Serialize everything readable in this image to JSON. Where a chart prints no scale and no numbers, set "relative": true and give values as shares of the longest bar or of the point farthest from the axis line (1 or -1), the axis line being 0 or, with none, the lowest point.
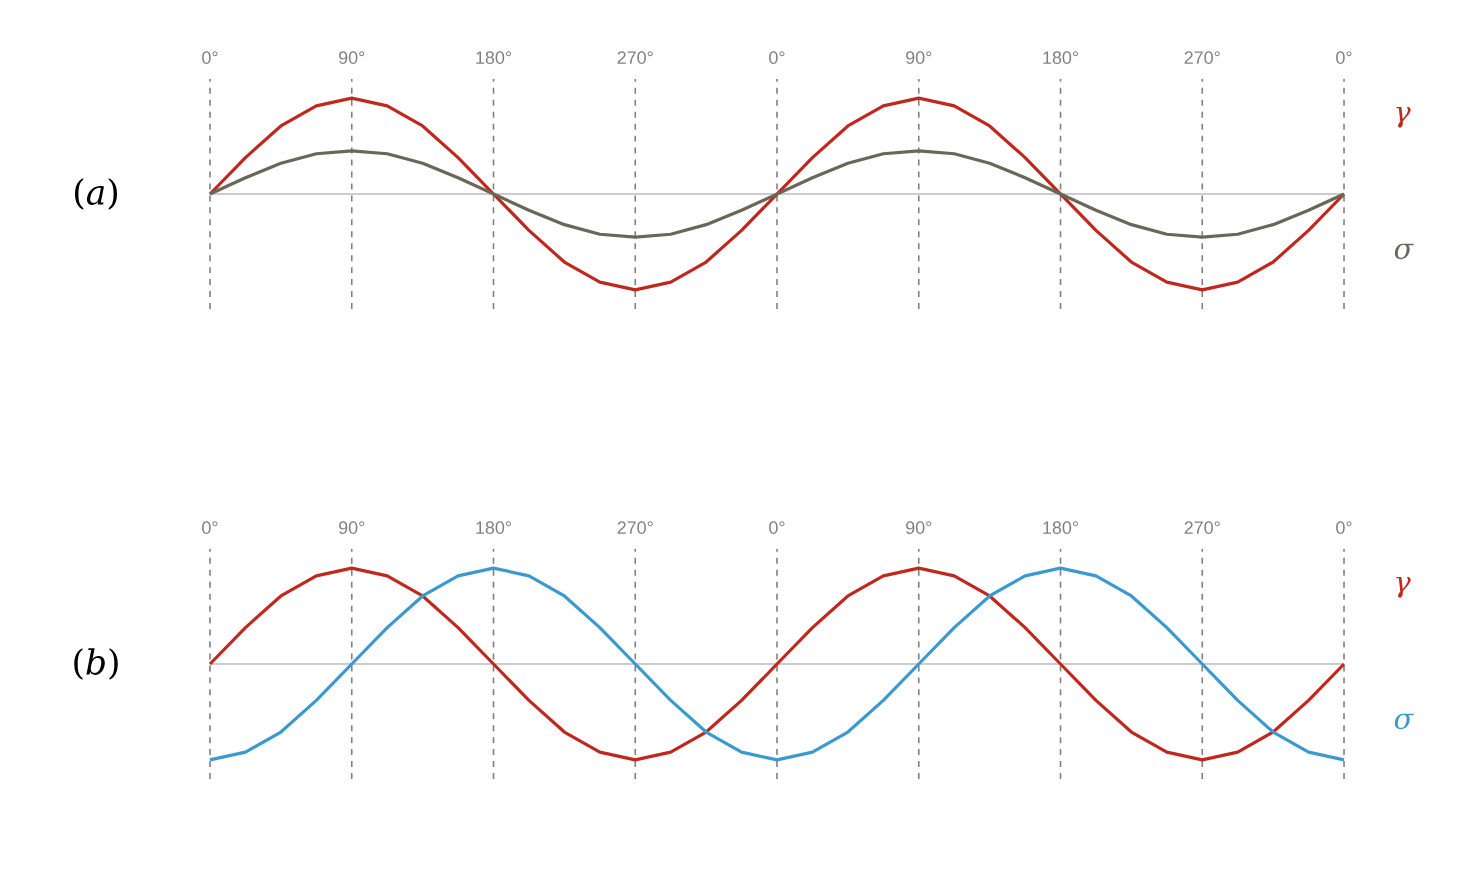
{
  "chart_data": [
    {
      "type": "line",
      "title": "(*a*)",
      "relative": true,
      "legend": false,
      "grid": "x",
      "line_style": "solid",
      "categories": [
        "0°",
        null,
        null,
        null,
        "90°",
        null,
        null,
        null,
        "180°",
        null,
        null,
        null,
        "270°",
        null,
        null,
        null,
        "0°",
        null,
        null,
        null,
        "90°",
        null,
        null,
        null,
        "180°",
        null,
        null,
        null,
        "270°",
        null,
        null,
        null,
        "0°"
      ],
      "series": [
        {
          "name": "γ",
          "color": "#c0281e",
          "values": [
            0,
            0.38,
            0.71,
            0.92,
            1,
            0.92,
            0.71,
            0.38,
            0,
            -0.38,
            -0.71,
            -0.92,
            -1,
            -0.92,
            -0.71,
            -0.38,
            0,
            0.38,
            0.71,
            0.92,
            1,
            0.92,
            0.71,
            0.38,
            0,
            -0.38,
            -0.71,
            -0.92,
            -1,
            -0.92,
            -0.71,
            -0.38,
            0
          ]
        },
        {
          "name": "σ",
          "color": "#6b6658",
          "values": [
            0,
            0.17,
            0.32,
            0.42,
            0.45,
            0.42,
            0.32,
            0.17,
            0,
            -0.17,
            -0.32,
            -0.42,
            -0.45,
            -0.42,
            -0.32,
            -0.17,
            0,
            0.17,
            0.32,
            0.42,
            0.45,
            0.42,
            0.32,
            0.17,
            0,
            -0.17,
            -0.32,
            -0.42,
            -0.45,
            -0.42,
            -0.32,
            -0.17,
            0
          ]
        }
      ]
    },
    {
      "type": "line",
      "title": "(*b*)",
      "relative": true,
      "legend": false,
      "grid": "x",
      "line_style": "solid",
      "categories": [
        "0°",
        null,
        null,
        null,
        "90°",
        null,
        null,
        null,
        "180°",
        null,
        null,
        null,
        "270°",
        null,
        null,
        null,
        "0°",
        null,
        null,
        null,
        "90°",
        null,
        null,
        null,
        "180°",
        null,
        null,
        null,
        "270°",
        null,
        null,
        null,
        "0°"
      ],
      "series": [
        {
          "name": "γ",
          "color": "#c0281e",
          "values": [
            0,
            0.38,
            0.71,
            0.92,
            1,
            0.92,
            0.71,
            0.38,
            0,
            -0.38,
            -0.71,
            -0.92,
            -1,
            -0.92,
            -0.71,
            -0.38,
            0,
            0.38,
            0.71,
            0.92,
            1,
            0.92,
            0.71,
            0.38,
            0,
            -0.38,
            -0.71,
            -0.92,
            -1,
            -0.92,
            -0.71,
            -0.38,
            0
          ]
        },
        {
          "name": "σ",
          "color": "#3a9ad0",
          "values": [
            -1,
            -0.92,
            -0.71,
            -0.38,
            0,
            0.38,
            0.71,
            0.92,
            1,
            0.92,
            0.71,
            0.38,
            0,
            -0.38,
            -0.71,
            -0.92,
            -1,
            -0.92,
            -0.71,
            -0.38,
            0,
            0.38,
            0.71,
            0.92,
            1,
            0.92,
            0.71,
            0.38,
            0,
            -0.38,
            -0.71,
            -0.92,
            -1
          ]
        }
      ]
    }
  ]
}
